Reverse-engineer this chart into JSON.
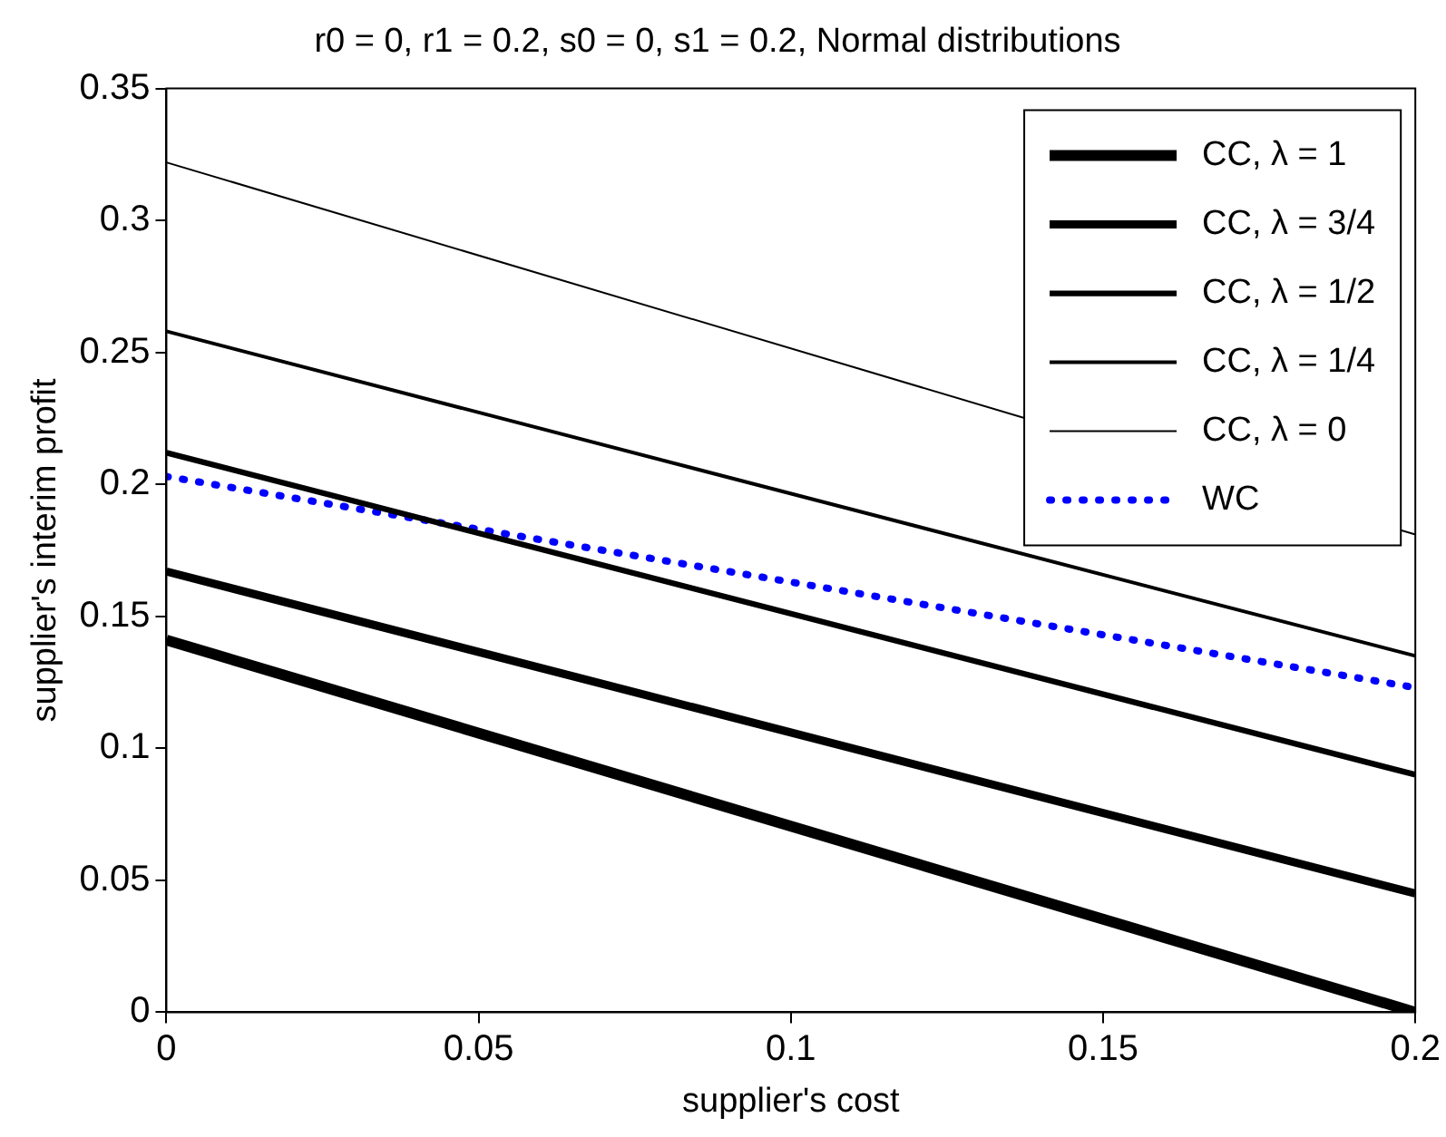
{
  "chart_data": {
    "type": "line",
    "title": "r0 = 0, r1 = 0.2, s0 = 0, s1 = 0.2, Normal distributions",
    "xlabel": "supplier's cost",
    "ylabel": "supplier's interim profit",
    "x": [
      0,
      0.2
    ],
    "series": [
      {
        "name": "CC, λ = 1",
        "color": "#000000",
        "values": [
          0.141,
          0
        ]
      },
      {
        "name": "CC, λ = 3/4",
        "color": "#000000",
        "values": [
          0.167,
          0.045
        ]
      },
      {
        "name": "CC, λ = 1/2",
        "color": "#000000",
        "values": [
          0.212,
          0.09
        ]
      },
      {
        "name": "CC, λ = 1/4",
        "color": "#000000",
        "values": [
          0.258,
          0.135
        ]
      },
      {
        "name": "CC, λ = 0",
        "color": "#000000",
        "values": [
          0.322,
          0.181
        ]
      },
      {
        "name": "WC",
        "color": "#0000ff",
        "values": [
          0.203,
          0.123
        ],
        "line_style": "dotted"
      }
    ],
    "xlim": [
      0,
      0.2
    ],
    "xticks": [
      0,
      0.05,
      0.1,
      0.15,
      0.2
    ],
    "ylim": [
      0,
      0.35
    ],
    "yticks": [
      0,
      0.05,
      0.1,
      0.15,
      0.2,
      0.25,
      0.3,
      0.35
    ],
    "grid": false,
    "legend": "top right",
    "marker": "none"
  }
}
